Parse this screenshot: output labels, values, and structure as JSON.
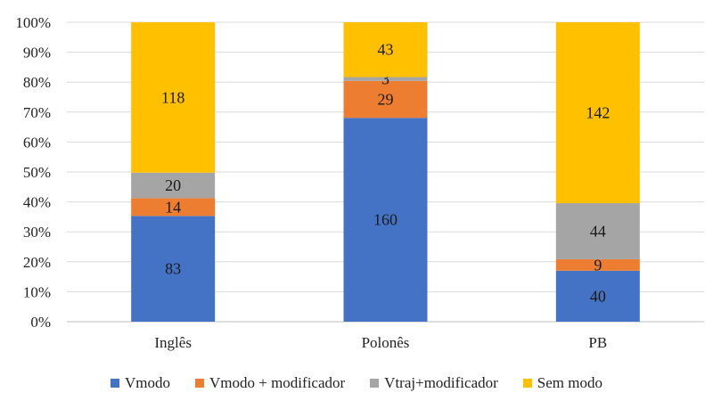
{
  "chart_data": {
    "type": "bar",
    "stacked": "percent",
    "categories": [
      "Inglês",
      "Polonês",
      "PB"
    ],
    "series": [
      {
        "name": "Vmodo",
        "color": "#4472C4",
        "values": [
          83,
          160,
          40
        ]
      },
      {
        "name": "Vmodo + modificador",
        "color": "#ED7D31",
        "values": [
          14,
          29,
          9
        ]
      },
      {
        "name": "Vtraj+modificador",
        "color": "#A5A5A5",
        "values": [
          20,
          3,
          44
        ]
      },
      {
        "name": "Sem modo",
        "color": "#FFC000",
        "values": [
          118,
          43,
          142
        ]
      }
    ],
    "yticks": [
      "0%",
      "10%",
      "20%",
      "30%",
      "40%",
      "50%",
      "60%",
      "70%",
      "80%",
      "90%",
      "100%"
    ],
    "ylim": [
      0,
      100
    ],
    "grid": true,
    "legend_position": "bottom"
  }
}
